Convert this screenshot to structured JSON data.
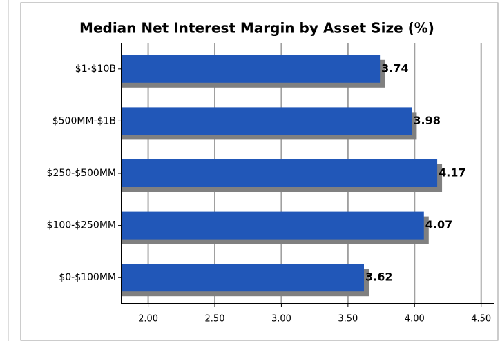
{
  "chart_data": {
    "type": "hbar",
    "title": "Median Net Interest Margin by Asset Size (%)",
    "categories": [
      "$1-$10B",
      "$500MM-$1B",
      "$250-$500MM",
      "$100-$250MM",
      "$0-$100MM"
    ],
    "values": [
      3.74,
      3.98,
      4.17,
      4.07,
      3.62
    ],
    "color": "#2157b8",
    "shadow_color": "#808080",
    "xlim": [
      1.8,
      4.6
    ],
    "xticks": [
      {
        "value": 2,
        "label": "2.00"
      },
      {
        "value": 2.5,
        "label": "2.50"
      },
      {
        "value": 3,
        "label": "3.00"
      },
      {
        "value": 3.5,
        "label": "3.50"
      },
      {
        "value": 4,
        "label": "4.00"
      },
      {
        "value": 4.5,
        "label": "4.50"
      }
    ],
    "grid": true
  }
}
